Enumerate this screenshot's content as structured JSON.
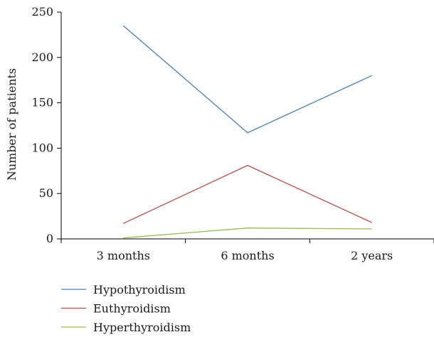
{
  "chart_data": {
    "type": "line",
    "categories": [
      "3 months",
      "6 months",
      "2 years"
    ],
    "series": [
      {
        "name": "Hypothyroidism",
        "values": [
          235,
          117,
          180
        ],
        "color": "#4a7ebb"
      },
      {
        "name": "Euthyroidism",
        "values": [
          17,
          81,
          18
        ],
        "color": "#be4b48"
      },
      {
        "name": "Hyperthyroidism",
        "values": [
          1,
          12,
          11
        ],
        "color": "#98b954"
      }
    ],
    "ylabel": "Number of patients",
    "xlabel": "",
    "ylim": [
      0,
      250
    ],
    "yticks": [
      0,
      50,
      100,
      150,
      200,
      250
    ],
    "grid": false,
    "legend": "bottom-left"
  }
}
